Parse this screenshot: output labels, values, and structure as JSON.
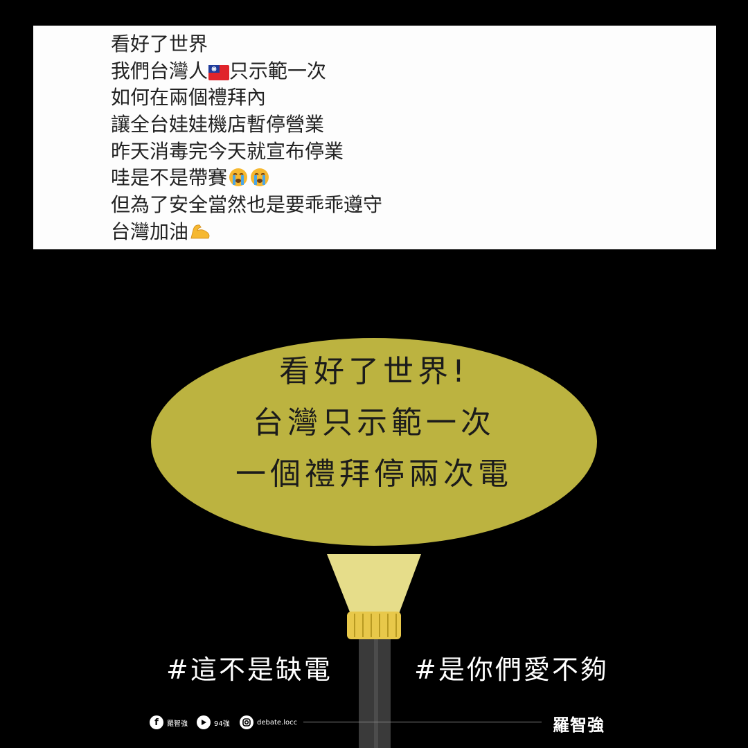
{
  "post": {
    "lines": [
      {
        "text": "看好了世界",
        "emoji": ""
      },
      {
        "text": "我們台灣人",
        "emoji": "taiwan-flag",
        "after": "只示範一次"
      },
      {
        "text": "如何在兩個禮拜內",
        "emoji": ""
      },
      {
        "text": "讓全台娃娃機店暫停營業",
        "emoji": ""
      },
      {
        "text": "昨天消毒完今天就宣布停業",
        "emoji": ""
      },
      {
        "text": "哇是不是帶賽",
        "emoji": "crying-face x2"
      },
      {
        "text": "但為了安全當然也是要乖乖遵守",
        "emoji": ""
      },
      {
        "text": "台灣加油",
        "emoji": "flexed-biceps"
      }
    ]
  },
  "bubble": {
    "line1": "看好了世界!",
    "line2": "台灣只示範一次",
    "line3": "一個禮拜停兩次電"
  },
  "hashtags": {
    "left": "#這不是缺電",
    "right": "#是你們愛不夠"
  },
  "footer": {
    "facebook_label": "羅智強",
    "youtube_label": "94強",
    "instagram_label": "debate.locc",
    "logo_text": "羅智強"
  },
  "colors": {
    "background": "#000000",
    "bubble": "#bcb340",
    "beam": "#e6dd8a",
    "flashlight_ring": "#e8c84a",
    "flashlight_body": "#3a3a3a"
  }
}
